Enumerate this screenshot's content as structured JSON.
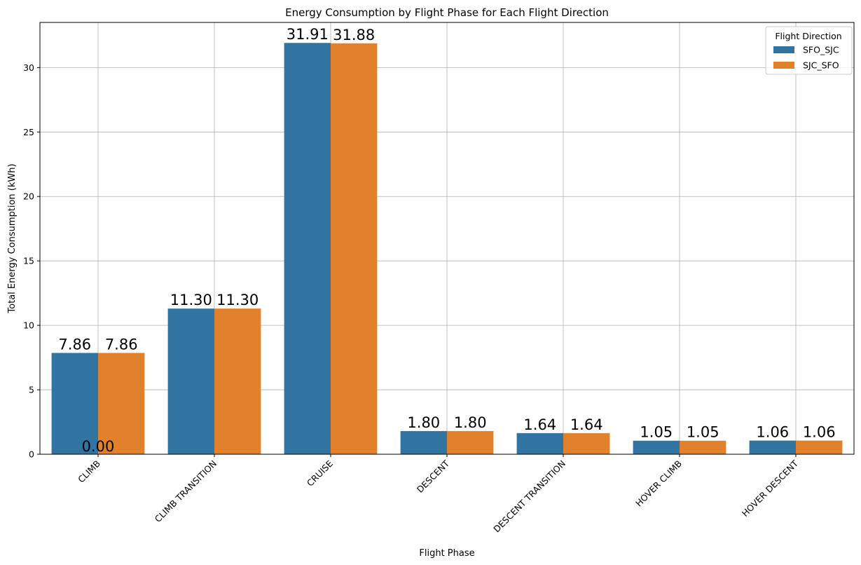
{
  "chart_data": {
    "type": "bar",
    "title": "Energy Consumption by Flight Phase for Each Flight Direction",
    "xlabel": "Flight Phase",
    "ylabel": "Total Energy Consumption (kWh)",
    "categories": [
      "CLIMB",
      "CLIMB TRANSITION",
      "CRUISE",
      "DESCENT",
      "DESCENT TRANSITION",
      "HOVER CLIMB",
      "HOVER DESCENT"
    ],
    "series": [
      {
        "name": "SFO_SJC",
        "color": "#3274a1",
        "values": [
          7.86,
          11.3,
          31.91,
          1.8,
          1.64,
          1.05,
          1.06
        ],
        "labels": [
          "7.86",
          "11.30",
          "31.91",
          "1.80",
          "1.64",
          "1.05",
          "1.06"
        ]
      },
      {
        "name": "SJC_SFO",
        "color": "#e1812c",
        "values": [
          7.86,
          11.3,
          31.88,
          1.8,
          1.64,
          1.05,
          1.06
        ],
        "labels": [
          "7.86",
          "11.30",
          "31.88",
          "1.80",
          "1.64",
          "1.05",
          "1.06"
        ]
      }
    ],
    "extra_labels": [
      {
        "category": "CLIMB",
        "value": 0.0,
        "label": "0.00"
      }
    ],
    "yticks": [
      0,
      5,
      10,
      15,
      20,
      25,
      30
    ],
    "ylim": [
      0,
      33.5
    ],
    "grid": true,
    "legend": {
      "title": "Flight Direction",
      "placement": "top-right"
    }
  }
}
